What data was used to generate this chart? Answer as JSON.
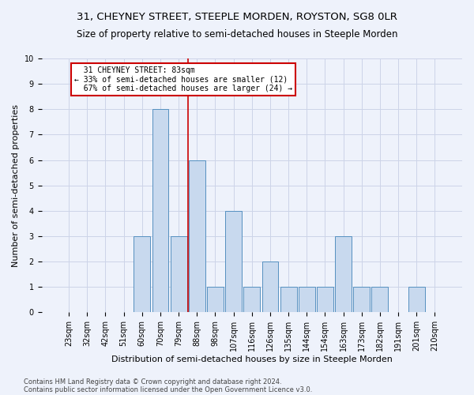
{
  "title": "31, CHEYNEY STREET, STEEPLE MORDEN, ROYSTON, SG8 0LR",
  "subtitle": "Size of property relative to semi-detached houses in Steeple Morden",
  "xlabel": "Distribution of semi-detached houses by size in Steeple Morden",
  "ylabel": "Number of semi-detached properties",
  "categories": [
    "23sqm",
    "32sqm",
    "42sqm",
    "51sqm",
    "60sqm",
    "70sqm",
    "79sqm",
    "88sqm",
    "98sqm",
    "107sqm",
    "116sqm",
    "126sqm",
    "135sqm",
    "144sqm",
    "154sqm",
    "163sqm",
    "173sqm",
    "182sqm",
    "191sqm",
    "201sqm",
    "210sqm"
  ],
  "values": [
    0,
    0,
    0,
    0,
    3,
    8,
    3,
    6,
    1,
    4,
    1,
    2,
    1,
    1,
    1,
    3,
    1,
    1,
    0,
    1,
    0
  ],
  "bar_color": "#c8d9ee",
  "bar_edge_color": "#5590c0",
  "subject_line_label": "31 CHEYNEY STREET: 83sqm",
  "smaller_pct": 33,
  "smaller_count": 12,
  "larger_pct": 67,
  "larger_count": 24,
  "ylim": [
    0,
    10
  ],
  "annotation_box_color": "#cc0000",
  "vertical_line_color": "#cc0000",
  "footnote1": "Contains HM Land Registry data © Crown copyright and database right 2024.",
  "footnote2": "Contains public sector information licensed under the Open Government Licence v3.0.",
  "title_fontsize": 9.5,
  "subtitle_fontsize": 8.5,
  "ylabel_fontsize": 8,
  "xlabel_fontsize": 8,
  "tick_fontsize": 7,
  "annotation_fontsize": 7,
  "footnote_fontsize": 6,
  "background_color": "#eef2fb",
  "plot_background_color": "#eef2fb",
  "grid_color": "#ccd4e8"
}
